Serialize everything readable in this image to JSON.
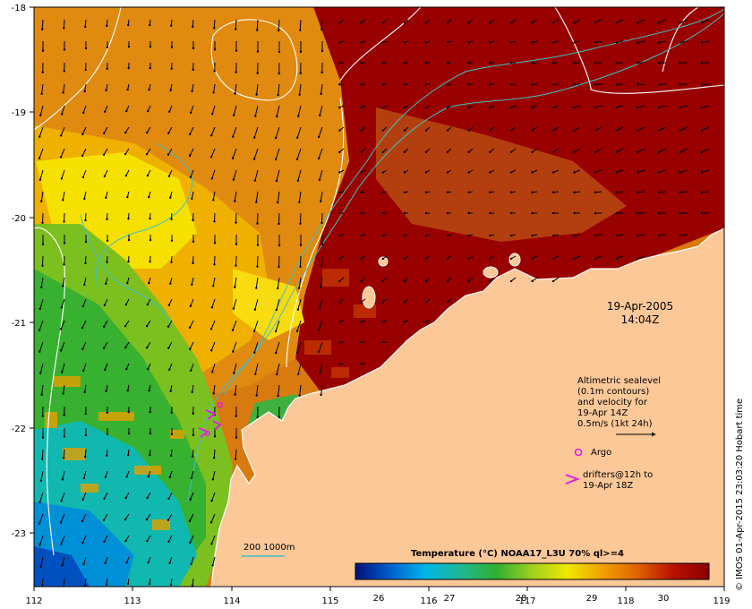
{
  "map": {
    "lon_ticks": [
      "112",
      "113",
      "114",
      "115",
      "116",
      "117",
      "118",
      "119"
    ],
    "lat_ticks": [
      "-18",
      "-19",
      "-20",
      "-21",
      "-22",
      "-23"
    ],
    "date": "19-Apr-2005",
    "time": "14:04Z",
    "legend": {
      "line1": "Altimetric sealevel",
      "line2": "(0.1m contours)",
      "line3": "and velocity for",
      "line4": "19-Apr 14Z",
      "line5": "0.5m/s (1kt 24h)",
      "argo": "Argo",
      "drifters1": "drifters@12h to",
      "drifters2": "19-Apr 18Z"
    },
    "isobath_label": "200  1000m",
    "colorbar": {
      "title": "Temperature (°C) NOAA17_L3U 70% ql>=4",
      "ticks": [
        "26",
        "27",
        "28",
        "29",
        "30"
      ],
      "colors": [
        "#00107a",
        "#0060d0",
        "#00b8e8",
        "#20b890",
        "#30b030",
        "#a0d020",
        "#f0e800",
        "#f0a000",
        "#e06000",
        "#b81000",
        "#8a0000"
      ]
    },
    "credit": "© IMOS 01-Apr-2015 23:03:20 Hobart time",
    "colors": {
      "land": "#fcc898",
      "sst_hot": "#990000",
      "contour": "#ffffff",
      "isobath": "#40c0c8",
      "argo": "#e020e0",
      "drifters": "#e020e0"
    }
  }
}
